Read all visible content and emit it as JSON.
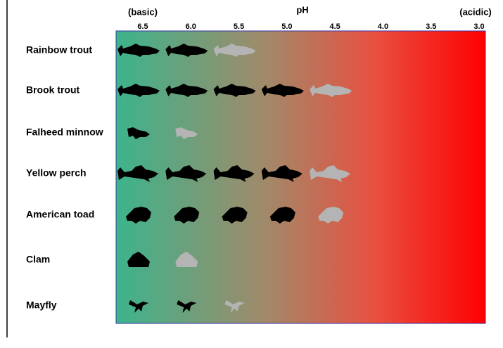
{
  "axis": {
    "label": "pH",
    "left_note": "(basic)",
    "right_note": "(acidic)",
    "ticks": [
      {
        "value": 6.5,
        "label": "6.5"
      },
      {
        "value": 6.0,
        "label": "6.0"
      },
      {
        "value": 5.5,
        "label": "5.5"
      },
      {
        "value": 5.0,
        "label": "5.0"
      },
      {
        "value": 4.5,
        "label": "4.5"
      },
      {
        "value": 4.0,
        "label": "4.0"
      },
      {
        "value": 3.5,
        "label": "3.5"
      },
      {
        "value": 3.0,
        "label": "3.0"
      }
    ]
  },
  "rows": [
    {
      "name": "Rainbow trout",
      "tolerant": [
        6.5,
        6.0
      ],
      "limit": 5.5
    },
    {
      "name": "Brook trout",
      "tolerant": [
        6.5,
        6.0,
        5.5,
        5.0
      ],
      "limit": 4.5
    },
    {
      "name": "Falheed minnow",
      "tolerant": [
        6.5
      ],
      "limit": 6.0
    },
    {
      "name": "Yellow perch",
      "tolerant": [
        6.5,
        6.0,
        5.5,
        5.0
      ],
      "limit": 4.5
    },
    {
      "name": "American toad",
      "tolerant": [
        6.5,
        6.0,
        5.5,
        5.0
      ],
      "limit": 4.5
    },
    {
      "name": "Clam",
      "tolerant": [
        6.5
      ],
      "limit": 6.0
    },
    {
      "name": "Mayfly",
      "tolerant": [
        6.5,
        6.0
      ],
      "limit": 5.5
    }
  ]
}
